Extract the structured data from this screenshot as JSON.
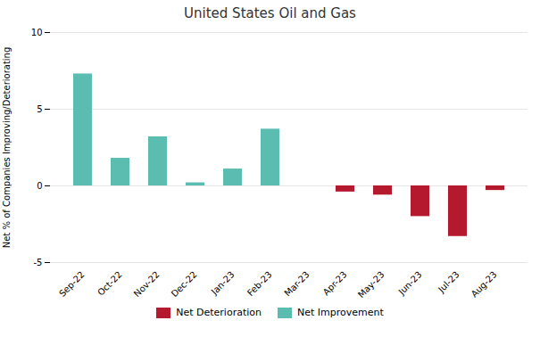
{
  "chart_data": {
    "type": "bar",
    "title": "United States Oil and Gas",
    "ylabel": "Net % of Companies Improving/Deteriorating",
    "categories": [
      "Sep-22",
      "Oct-22",
      "Nov-22",
      "Dec-22",
      "Jan-23",
      "Feb-23",
      "Mar-23",
      "Apr-23",
      "May-23",
      "Jun-23",
      "Jul-23",
      "Aug-23"
    ],
    "values": [
      7.3,
      1.8,
      3.2,
      0.2,
      1.1,
      3.7,
      0.0,
      -0.4,
      -0.6,
      -2.0,
      -3.3,
      -0.3
    ],
    "colors": [
      "#5bbcb0",
      "#5bbcb0",
      "#5bbcb0",
      "#5bbcb0",
      "#5bbcb0",
      "#5bbcb0",
      "#5bbcb0",
      "#b5192d",
      "#b5192d",
      "#b5192d",
      "#b5192d",
      "#b5192d"
    ],
    "legend_entries": [
      {
        "name": "Net Deterioration",
        "color": "#b5192d"
      },
      {
        "name": "Net Improvement",
        "color": "#5bbcb0"
      }
    ],
    "legend": "bottom",
    "ylim": [
      -5,
      10
    ],
    "yticks": [
      -5,
      0,
      5,
      10
    ],
    "grid": true
  }
}
